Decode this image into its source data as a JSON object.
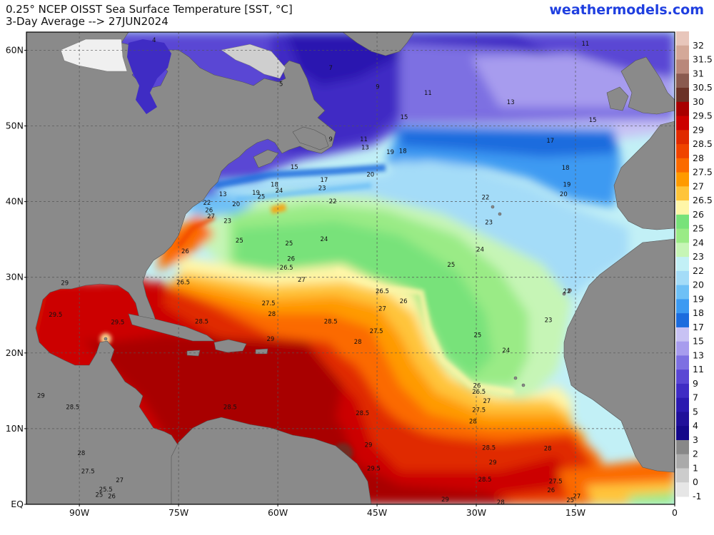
{
  "header": {
    "title_line1": "0.25° NCEP OISST Sea Surface Temperature [SST, °C]",
    "title_line2": "3-Day Average --> 27JUN2024",
    "brand": "weathermodels.com"
  },
  "axes": {
    "lat_labels": [
      "60N",
      "50N",
      "40N",
      "30N",
      "20N",
      "10N",
      "EQ"
    ],
    "lon_labels": [
      "90W",
      "75W",
      "60W",
      "45W",
      "30W",
      "15W",
      "0"
    ]
  },
  "colorbar": [
    {
      "label": "32",
      "color": "#e8c6bb"
    },
    {
      "label": "31.5",
      "color": "#d4a898"
    },
    {
      "label": "31",
      "color": "#b9877a"
    },
    {
      "label": "30.5",
      "color": "#8a5a4f"
    },
    {
      "label": "30",
      "color": "#6b3126"
    },
    {
      "label": "29.5",
      "color": "#a80000"
    },
    {
      "label": "29",
      "color": "#cc0000"
    },
    {
      "label": "28.5",
      "color": "#e02a00"
    },
    {
      "label": "28",
      "color": "#f04400"
    },
    {
      "label": "27.5",
      "color": "#fb6a00"
    },
    {
      "label": "27",
      "color": "#ff9a00"
    },
    {
      "label": "26.5",
      "color": "#ffc43a"
    },
    {
      "label": "26",
      "color": "#fff6a8"
    },
    {
      "label": "25",
      "color": "#78e27a"
    },
    {
      "label": "24",
      "color": "#9aeb86"
    },
    {
      "label": "23",
      "color": "#c6f5b6"
    },
    {
      "label": "22",
      "color": "#c2f0f6"
    },
    {
      "label": "20",
      "color": "#a4dcf8"
    },
    {
      "label": "19",
      "color": "#6ec0f6"
    },
    {
      "label": "18",
      "color": "#3c9af2"
    },
    {
      "label": "17",
      "color": "#1c6cde"
    },
    {
      "label": "15",
      "color": "#c8c2f4"
    },
    {
      "label": "13",
      "color": "#a79cee"
    },
    {
      "label": "11",
      "color": "#7d70e2"
    },
    {
      "label": "9",
      "color": "#5a47d4"
    },
    {
      "label": "7",
      "color": "#3f2cc4"
    },
    {
      "label": "5",
      "color": "#2b19b0"
    },
    {
      "label": "4",
      "color": "#20109a"
    },
    {
      "label": "3",
      "color": "#14088a"
    },
    {
      "label": "2",
      "color": "#888888"
    },
    {
      "label": "1",
      "color": "#aaaaaa"
    },
    {
      "label": "0",
      "color": "#cccccc"
    },
    {
      "label": "-1",
      "color": "#e6e6e6"
    }
  ],
  "contour_labels": [
    {
      "t": "4",
      "lon": -78.7,
      "lat": 61.1
    },
    {
      "t": "7",
      "lon": -52.0,
      "lat": 57.4
    },
    {
      "t": "5",
      "lon": -59.5,
      "lat": 55.3
    },
    {
      "t": "9",
      "lon": -44.9,
      "lat": 54.9
    },
    {
      "t": "11",
      "lon": -37.3,
      "lat": 54.1
    },
    {
      "t": "11",
      "lon": -13.5,
      "lat": 60.6
    },
    {
      "t": "13",
      "lon": -24.8,
      "lat": 52.9
    },
    {
      "t": "15",
      "lon": -40.9,
      "lat": 50.9
    },
    {
      "t": "15",
      "lon": -12.4,
      "lat": 50.5
    },
    {
      "t": "17",
      "lon": -18.8,
      "lat": 47.8
    },
    {
      "t": "9",
      "lon": -52.0,
      "lat": 48.0
    },
    {
      "t": "11",
      "lon": -47.0,
      "lat": 48.0
    },
    {
      "t": "13",
      "lon": -46.8,
      "lat": 46.9
    },
    {
      "t": "19",
      "lon": -43.0,
      "lat": 46.3
    },
    {
      "t": "18",
      "lon": -41.1,
      "lat": 46.4
    },
    {
      "t": "15",
      "lon": -57.5,
      "lat": 44.3
    },
    {
      "t": "18",
      "lon": -16.5,
      "lat": 44.2
    },
    {
      "t": "20",
      "lon": -46.0,
      "lat": 43.3
    },
    {
      "t": "17",
      "lon": -53.0,
      "lat": 42.6
    },
    {
      "t": "19",
      "lon": -16.3,
      "lat": 42.0
    },
    {
      "t": "20",
      "lon": -16.8,
      "lat": 40.7
    },
    {
      "t": "18",
      "lon": -60.5,
      "lat": 42.0
    },
    {
      "t": "24",
      "lon": -59.8,
      "lat": 41.2
    },
    {
      "t": "23",
      "lon": -53.3,
      "lat": 41.5
    },
    {
      "t": "19",
      "lon": -63.3,
      "lat": 40.9
    },
    {
      "t": "25",
      "lon": -62.5,
      "lat": 40.4
    },
    {
      "t": "13",
      "lon": -68.3,
      "lat": 40.7
    },
    {
      "t": "20",
      "lon": -66.3,
      "lat": 39.4
    },
    {
      "t": "22",
      "lon": -51.7,
      "lat": 39.8
    },
    {
      "t": "22",
      "lon": -28.6,
      "lat": 40.3
    },
    {
      "t": "22",
      "lon": -70.7,
      "lat": 39.6
    },
    {
      "t": "26",
      "lon": -70.4,
      "lat": 38.6
    },
    {
      "t": "27",
      "lon": -70.1,
      "lat": 37.8
    },
    {
      "t": "23",
      "lon": -67.6,
      "lat": 37.2
    },
    {
      "t": "23",
      "lon": -28.1,
      "lat": 37.0
    },
    {
      "t": "25",
      "lon": -65.8,
      "lat": 34.6
    },
    {
      "t": "24",
      "lon": -53.0,
      "lat": 34.8
    },
    {
      "t": "25",
      "lon": -58.3,
      "lat": 34.2
    },
    {
      "t": "24",
      "lon": -29.4,
      "lat": 33.4
    },
    {
      "t": "26",
      "lon": -74.0,
      "lat": 33.2
    },
    {
      "t": "26",
      "lon": -58.0,
      "lat": 32.2
    },
    {
      "t": "26.5",
      "lon": -58.7,
      "lat": 31.0
    },
    {
      "t": "25",
      "lon": -33.8,
      "lat": 31.4
    },
    {
      "t": "27",
      "lon": -56.4,
      "lat": 29.4
    },
    {
      "t": "26.5",
      "lon": -74.3,
      "lat": 29.1
    },
    {
      "t": "26.5",
      "lon": -44.2,
      "lat": 27.9
    },
    {
      "t": "26",
      "lon": -41.0,
      "lat": 26.6
    },
    {
      "t": "22",
      "lon": -16.3,
      "lat": 27.9
    },
    {
      "t": "27.5",
      "lon": -61.4,
      "lat": 26.3
    },
    {
      "t": "27",
      "lon": -44.2,
      "lat": 25.6
    },
    {
      "t": "28",
      "lon": -60.9,
      "lat": 24.9
    },
    {
      "t": "29",
      "lon": -92.2,
      "lat": 29.0
    },
    {
      "t": "29.5",
      "lon": -93.6,
      "lat": 24.8
    },
    {
      "t": "29.5",
      "lon": -84.2,
      "lat": 23.8
    },
    {
      "t": "28.5",
      "lon": -71.5,
      "lat": 23.9
    },
    {
      "t": "28.5",
      "lon": -52.0,
      "lat": 23.9
    },
    {
      "t": "27.5",
      "lon": -45.1,
      "lat": 22.6
    },
    {
      "t": "23",
      "lon": -19.1,
      "lat": 24.1
    },
    {
      "t": "25",
      "lon": -29.8,
      "lat": 22.1
    },
    {
      "t": "29",
      "lon": -61.1,
      "lat": 21.6
    },
    {
      "t": "28",
      "lon": -47.9,
      "lat": 21.2
    },
    {
      "t": "24",
      "lon": -25.5,
      "lat": 20.1
    },
    {
      "t": "26",
      "lon": -29.9,
      "lat": 15.4
    },
    {
      "t": "26.5",
      "lon": -29.6,
      "lat": 14.6
    },
    {
      "t": "27",
      "lon": -28.4,
      "lat": 13.4
    },
    {
      "t": "27.5",
      "lon": -29.6,
      "lat": 12.2
    },
    {
      "t": "29",
      "lon": -95.8,
      "lat": 14.1
    },
    {
      "t": "28.5",
      "lon": -91.0,
      "lat": 12.6
    },
    {
      "t": "28.5",
      "lon": -67.2,
      "lat": 12.6
    },
    {
      "t": "28.5",
      "lon": -47.2,
      "lat": 11.8
    },
    {
      "t": "28",
      "lon": -30.5,
      "lat": 10.7
    },
    {
      "t": "29",
      "lon": -46.3,
      "lat": 7.6
    },
    {
      "t": "28.5",
      "lon": -28.1,
      "lat": 7.2
    },
    {
      "t": "28",
      "lon": -19.2,
      "lat": 7.1
    },
    {
      "t": "29",
      "lon": -27.5,
      "lat": 5.3
    },
    {
      "t": "28",
      "lon": -89.7,
      "lat": 6.5
    },
    {
      "t": "27.5",
      "lon": -88.7,
      "lat": 4.1
    },
    {
      "t": "29.5",
      "lon": -45.5,
      "lat": 4.5
    },
    {
      "t": "27",
      "lon": -83.9,
      "lat": 2.9
    },
    {
      "t": "28.5",
      "lon": -28.7,
      "lat": 3.0
    },
    {
      "t": "27.5",
      "lon": -18.0,
      "lat": 2.8
    },
    {
      "t": "25.5",
      "lon": -86.0,
      "lat": 1.7
    },
    {
      "t": "26",
      "lon": -18.7,
      "lat": 1.6
    },
    {
      "t": "25",
      "lon": -87.0,
      "lat": 1.0
    },
    {
      "t": "26",
      "lon": -85.1,
      "lat": 0.8
    },
    {
      "t": "27",
      "lon": -14.8,
      "lat": 0.8
    },
    {
      "t": "25",
      "lon": -15.8,
      "lat": 0.3
    },
    {
      "t": "29",
      "lon": -34.7,
      "lat": 0.4
    },
    {
      "t": "28",
      "lon": -26.3,
      "lat": 0.0
    }
  ]
}
